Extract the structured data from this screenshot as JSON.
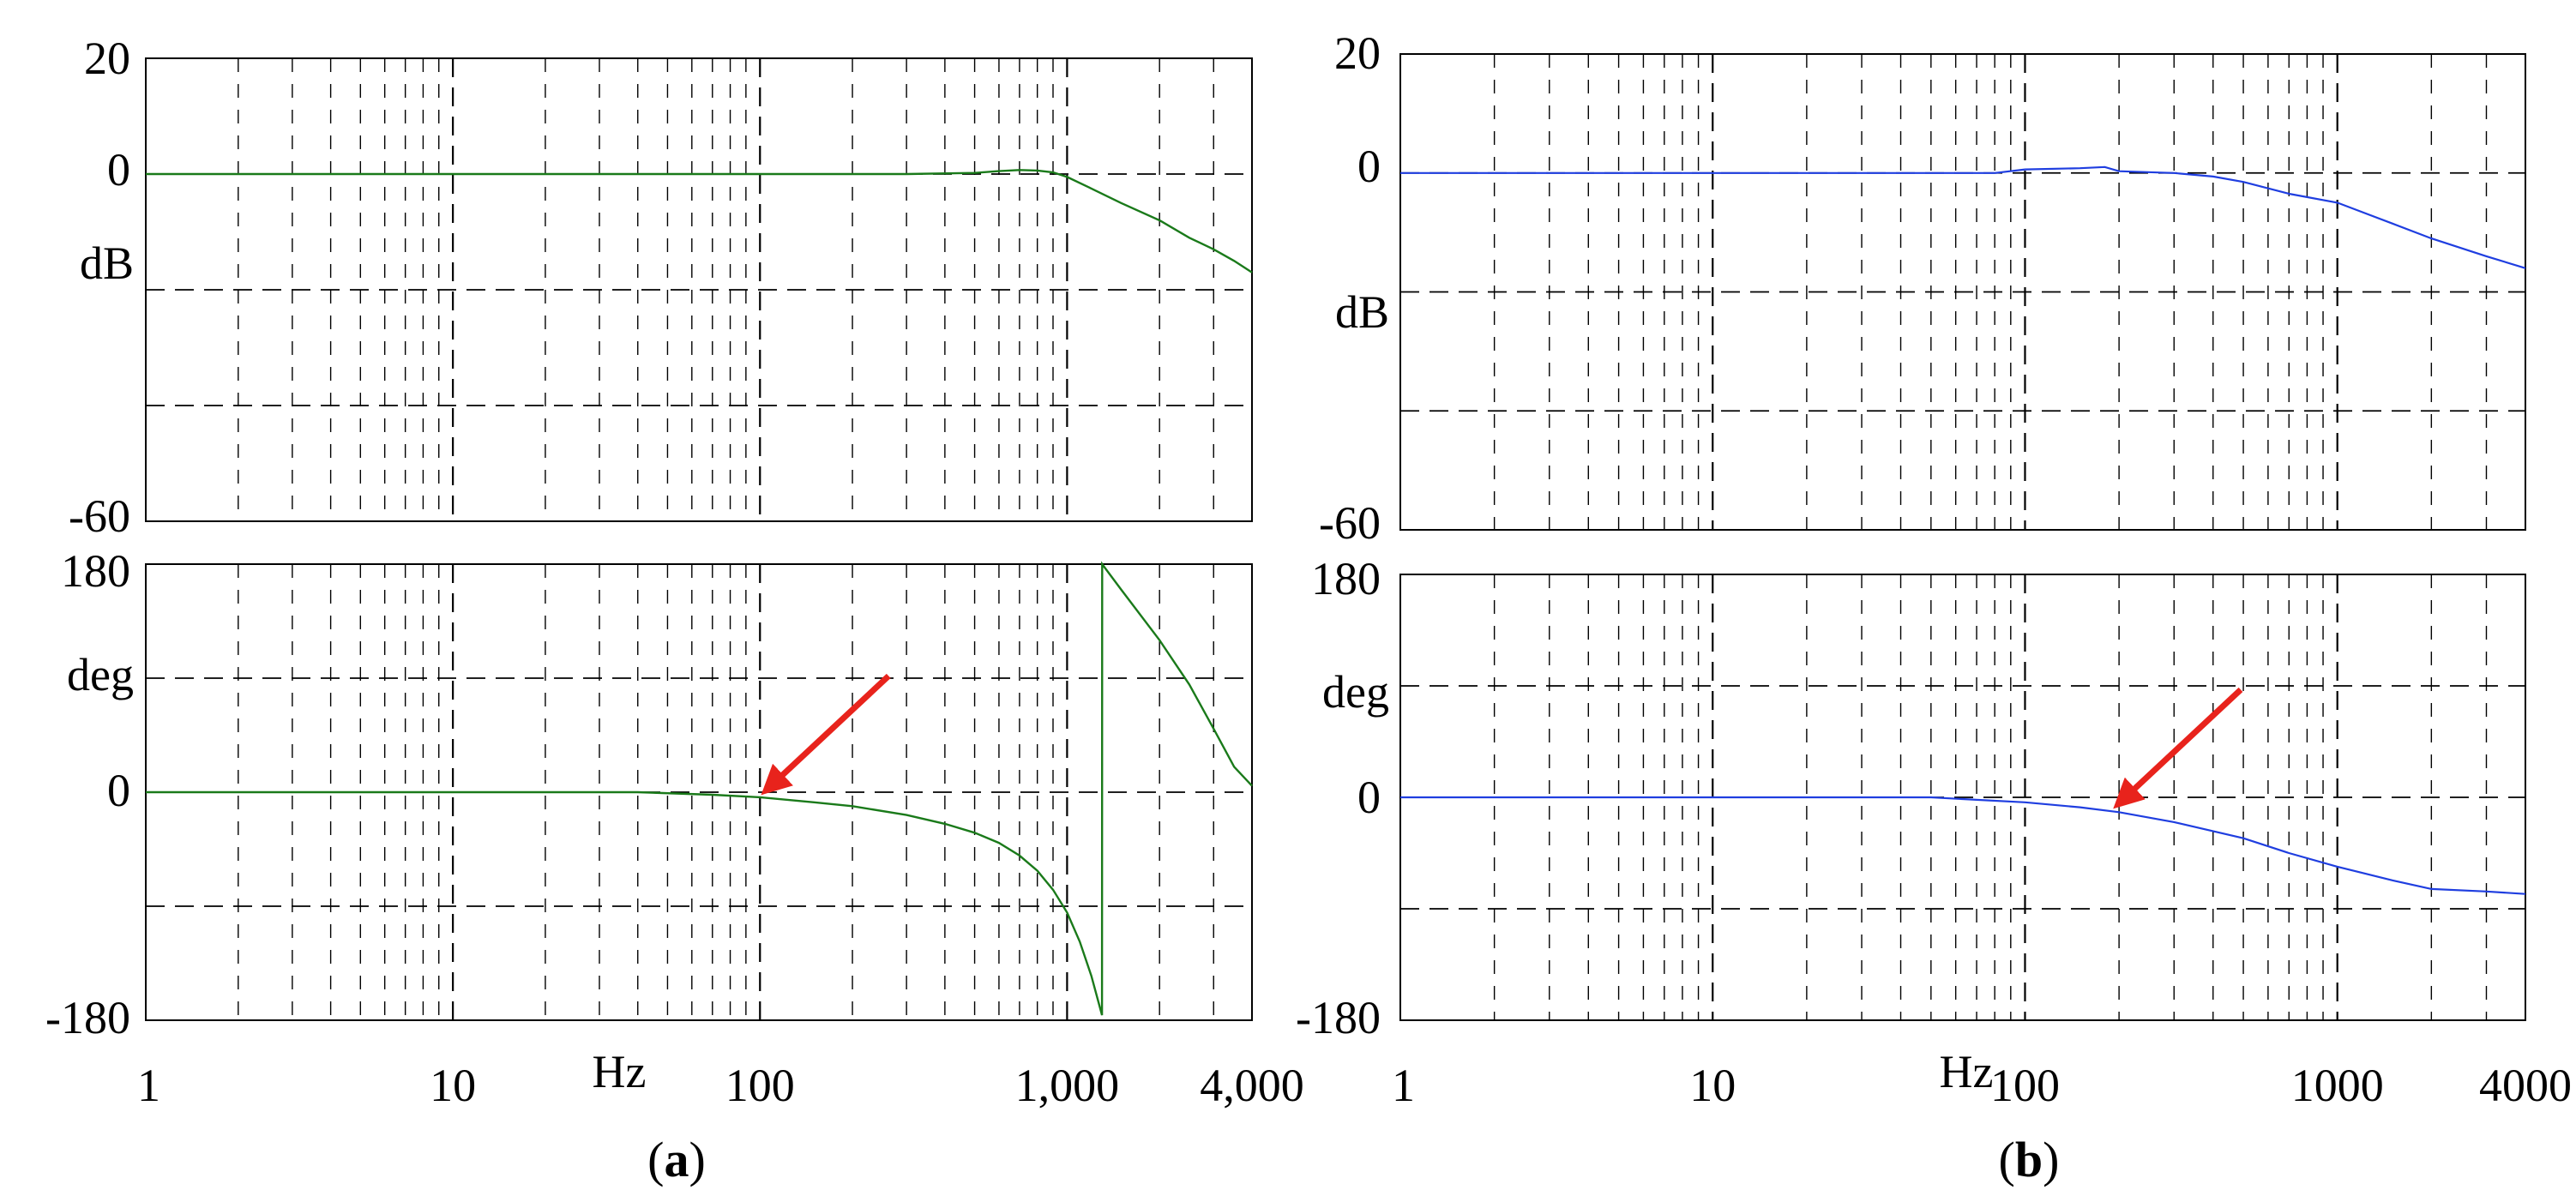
{
  "colors": {
    "series_a": "#1a7a1a",
    "series_b": "#1f3ee0",
    "arrow": "#e8231c",
    "grid": "#000000",
    "frame": "#000000"
  },
  "panels": [
    {
      "label_open": "(",
      "label_letter": "a",
      "label_close": ")"
    },
    {
      "label_open": "(",
      "label_letter": "b",
      "label_close": ")"
    }
  ],
  "chart_data": [
    {
      "type": "line",
      "panel": "a",
      "subplot": "magnitude",
      "x_scale": "log",
      "xlim": [
        1,
        4000
      ],
      "ylim": [
        -60,
        20
      ],
      "y_ticks": [
        20,
        0,
        -60
      ],
      "y_tick_labels": [
        "20",
        "0",
        "-60"
      ],
      "ylabel": "dB",
      "grid": true,
      "series": [
        {
          "x": [
            1,
            10,
            100,
            300,
            500,
            600,
            700,
            800,
            900,
            1000,
            1200,
            1500,
            2000,
            2500,
            3000,
            3500,
            4000
          ],
          "values": [
            0,
            0,
            0,
            0,
            0.2,
            0.5,
            0.7,
            0.6,
            0.3,
            -0.5,
            -2.5,
            -5,
            -8,
            -11,
            -13,
            -15,
            -17
          ]
        }
      ]
    },
    {
      "type": "line",
      "panel": "a",
      "subplot": "phase",
      "x_scale": "log",
      "xlim": [
        1,
        4000
      ],
      "ylim": [
        -180,
        180
      ],
      "y_ticks": [
        180,
        0,
        -180
      ],
      "y_tick_labels": [
        "180",
        "0",
        "-180"
      ],
      "ylabel": "deg",
      "xlabel": "Hz",
      "x_ticks": [
        1,
        10,
        100,
        1000,
        4000
      ],
      "x_tick_labels": [
        "1",
        "10",
        "100",
        "1,000",
        "4,000"
      ],
      "grid": true,
      "annotation": {
        "type": "arrow",
        "x": 100,
        "y": -3
      },
      "series": [
        {
          "x": [
            1,
            10,
            40,
            70,
            100,
            150,
            200,
            300,
            400,
            500,
            600,
            700,
            800,
            900,
            1000,
            1100,
            1200,
            1299,
            1301,
            1500,
            2000,
            2500,
            3000,
            3500,
            4000
          ],
          "values": [
            0,
            0,
            0,
            -2,
            -4,
            -8,
            -11,
            -18,
            -25,
            -32,
            -40,
            -50,
            -62,
            -77,
            -95,
            -118,
            -145,
            -176,
            180,
            160,
            120,
            85,
            50,
            20,
            5
          ]
        }
      ]
    },
    {
      "type": "line",
      "panel": "b",
      "subplot": "magnitude",
      "x_scale": "log",
      "xlim": [
        1,
        4000
      ],
      "ylim": [
        -60,
        20
      ],
      "y_ticks": [
        20,
        0,
        -60
      ],
      "y_tick_labels": [
        "20",
        "0",
        "-60"
      ],
      "ylabel": "dB",
      "grid": true,
      "series": [
        {
          "x": [
            1,
            10,
            50,
            80,
            100,
            150,
            180,
            200,
            300,
            400,
            500,
            700,
            1000,
            1500,
            2000,
            3000,
            4000
          ],
          "values": [
            0,
            0,
            0,
            0,
            0.6,
            0.8,
            1.0,
            0.3,
            0,
            -0.6,
            -1.5,
            -3.5,
            -5,
            -8.5,
            -11,
            -14,
            -16
          ]
        }
      ]
    },
    {
      "type": "line",
      "panel": "b",
      "subplot": "phase",
      "x_scale": "log",
      "xlim": [
        1,
        4000
      ],
      "ylim": [
        -180,
        180
      ],
      "y_ticks": [
        180,
        0,
        -180
      ],
      "y_tick_labels": [
        "180",
        "0",
        "-180"
      ],
      "ylabel": "deg",
      "xlabel": "Hz",
      "x_ticks": [
        1,
        10,
        100,
        1000,
        4000
      ],
      "x_tick_labels": [
        "1",
        "10",
        "100",
        "1000",
        "4000"
      ],
      "grid": true,
      "annotation": {
        "type": "arrow",
        "x": 190,
        "y": -10
      },
      "series": [
        {
          "x": [
            1,
            10,
            50,
            70,
            100,
            150,
            200,
            300,
            500,
            700,
            1000,
            1500,
            2000,
            3000,
            4000
          ],
          "values": [
            0,
            0,
            0,
            -2,
            -4,
            -8,
            -12,
            -20,
            -33,
            -45,
            -56,
            -67,
            -74,
            -76,
            -78
          ]
        }
      ]
    }
  ]
}
